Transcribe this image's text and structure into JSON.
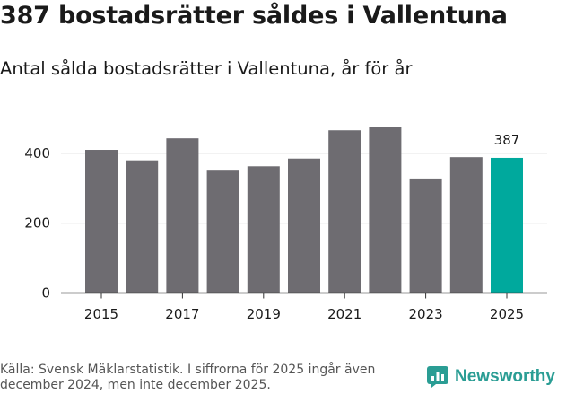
{
  "header": {
    "title": "387 bostadsrätter såldes i Vallentuna",
    "subtitle": "Antal sålda bostadsrätter i Vallentuna, år för år"
  },
  "chart_data": {
    "type": "bar",
    "title": "387 bostadsrätter såldes i Vallentuna",
    "subtitle": "Antal sålda bostadsrätter i Vallentuna, år för år",
    "xlabel": "",
    "ylabel": "",
    "categories": [
      "2015",
      "2016",
      "2017",
      "2018",
      "2019",
      "2020",
      "2021",
      "2022",
      "2023",
      "2024",
      "2025"
    ],
    "values": [
      410,
      380,
      443,
      353,
      363,
      385,
      466,
      476,
      328,
      389,
      387
    ],
    "highlight_index": 10,
    "highlight_label": "387",
    "x_tick_labels": [
      "2015",
      "2017",
      "2019",
      "2021",
      "2023",
      "2025"
    ],
    "y_ticks": [
      0,
      200,
      400
    ],
    "ylim": [
      0,
      500
    ],
    "grid": true,
    "colors": {
      "bar": "#6e6c71",
      "highlight": "#00a99d",
      "grid": "#dddddd",
      "axis": "#333333"
    }
  },
  "footer": {
    "source_note": "Källa: Svensk Mäklarstatistik. I siffrorna för 2025 ingår även december 2024, men inte december 2025.",
    "brand": "Newsworthy",
    "brand_icon": "bar-chart-icon",
    "brand_color": "#2a9d94"
  }
}
